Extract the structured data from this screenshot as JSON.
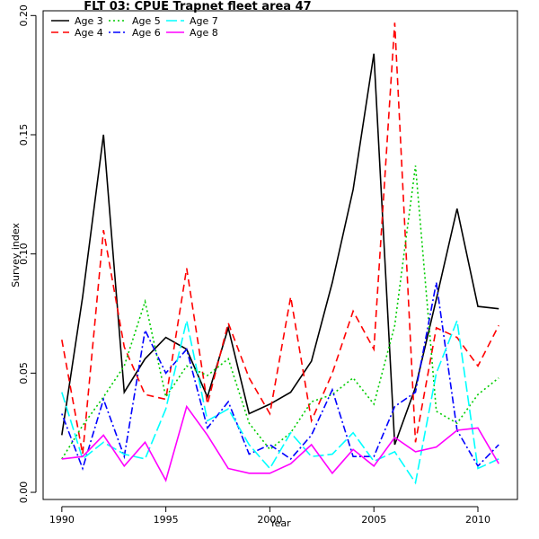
{
  "chart_data": {
    "type": "line",
    "title": "FLT 03: CPUE Trapnet fleet area 47",
    "xlabel": "Year",
    "ylabel": "Survey index",
    "xlim": [
      1989.1,
      2011.9
    ],
    "ylim": [
      -0.003,
      0.202
    ],
    "xticks": [
      1990,
      1995,
      2000,
      2005,
      2010
    ],
    "yticks": [
      0.0,
      0.05,
      0.1,
      0.15,
      0.2
    ],
    "ytick_labels": [
      "0.00",
      "0.05",
      "0.10",
      "0.15",
      "0.20"
    ],
    "grid": false,
    "legend_placement": "top-left",
    "x": [
      1990,
      1991,
      1992,
      1993,
      1994,
      1995,
      1996,
      1997,
      1998,
      1999,
      2000,
      2001,
      2002,
      2003,
      2004,
      2005,
      2006,
      2007,
      2008,
      2009,
      2010,
      2011
    ],
    "series": [
      {
        "name": "Age 3",
        "color": "#000000",
        "dash": "solid",
        "values": [
          0.024,
          0.082,
          0.15,
          0.042,
          0.056,
          0.065,
          0.06,
          0.04,
          0.069,
          0.033,
          0.037,
          0.042,
          0.055,
          0.088,
          0.127,
          0.184,
          0.02,
          0.044,
          0.081,
          0.119,
          0.078,
          0.077
        ]
      },
      {
        "name": "Age 4",
        "color": "#ff0000",
        "dash": "dashed",
        "values": [
          0.064,
          0.016,
          0.11,
          0.061,
          0.041,
          0.039,
          0.094,
          0.037,
          0.071,
          0.048,
          0.033,
          0.082,
          0.03,
          0.05,
          0.076,
          0.06,
          0.197,
          0.021,
          0.069,
          0.065,
          0.053,
          0.07
        ]
      },
      {
        "name": "Age 5",
        "color": "#00cc00",
        "dash": "dotted",
        "values": [
          0.014,
          0.028,
          0.04,
          0.053,
          0.08,
          0.04,
          0.053,
          0.049,
          0.056,
          0.029,
          0.018,
          0.025,
          0.038,
          0.041,
          0.048,
          0.037,
          0.07,
          0.137,
          0.034,
          0.029,
          0.041,
          0.048
        ]
      },
      {
        "name": "Age 6",
        "color": "#0000ff",
        "dash": "dotdash",
        "values": [
          0.033,
          0.01,
          0.039,
          0.015,
          0.068,
          0.05,
          0.06,
          0.027,
          0.038,
          0.016,
          0.02,
          0.014,
          0.024,
          0.043,
          0.015,
          0.015,
          0.036,
          0.042,
          0.088,
          0.026,
          0.011,
          0.02
        ]
      },
      {
        "name": "Age 7",
        "color": "#00ffff",
        "dash": "longdash",
        "values": [
          0.042,
          0.014,
          0.021,
          0.016,
          0.014,
          0.035,
          0.072,
          0.03,
          0.035,
          0.02,
          0.01,
          0.025,
          0.015,
          0.016,
          0.025,
          0.013,
          0.017,
          0.004,
          0.05,
          0.072,
          0.01,
          0.014
        ]
      },
      {
        "name": "Age 8",
        "color": "#ff00ff",
        "dash": "solid",
        "values": [
          0.014,
          0.015,
          0.024,
          0.011,
          0.021,
          0.005,
          0.036,
          0.024,
          0.01,
          0.008,
          0.008,
          0.012,
          0.02,
          0.008,
          0.018,
          0.011,
          0.023,
          0.017,
          0.019,
          0.026,
          0.027,
          0.012
        ]
      }
    ]
  }
}
